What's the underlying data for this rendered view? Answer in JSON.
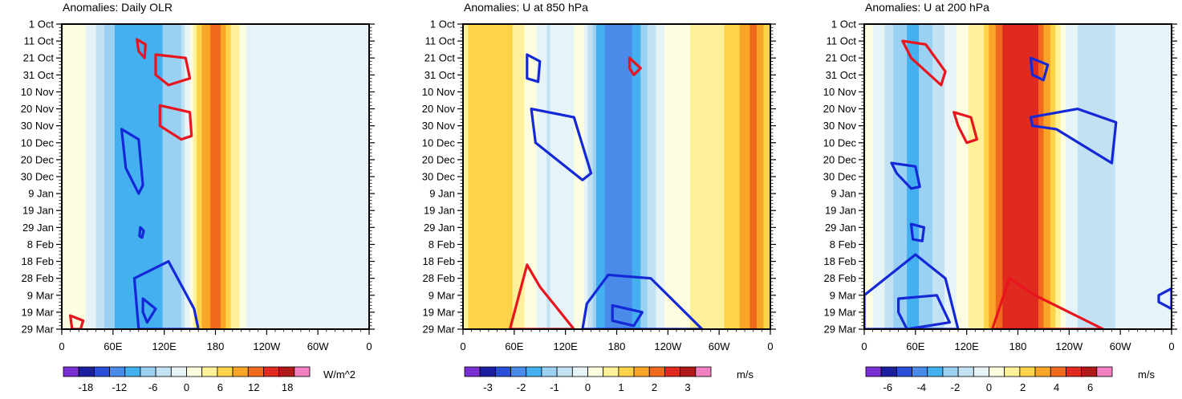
{
  "chart_data": [
    {
      "type": "heatmap",
      "title": "Anomalies: Daily OLR",
      "y_labels": [
        "1 Oct",
        "11 Oct",
        "21 Oct",
        "31 Oct",
        "10 Nov",
        "20 Nov",
        "30 Nov",
        "10 Dec",
        "20 Dec",
        "30 Dec",
        "9 Jan",
        "19 Jan",
        "29 Jan",
        "8 Feb",
        "18 Feb",
        "28 Feb",
        "9 Mar",
        "19 Mar",
        "29 Mar"
      ],
      "x_labels": [
        "0",
        "60E",
        "120E",
        "180",
        "120W",
        "60W",
        "0"
      ],
      "xlim": [
        0,
        360
      ],
      "ylim": [
        0,
        180
      ],
      "columns": {
        "lon": [
          0,
          20,
          40,
          60,
          80,
          100,
          120,
          140,
          160,
          180,
          200,
          220,
          240,
          260,
          280,
          300,
          320,
          340,
          360
        ],
        "anomaly": [
          1,
          2,
          -3,
          -8,
          -11,
          -10,
          -8,
          -6,
          7,
          13,
          5,
          -1,
          -2,
          -2,
          -1,
          -2,
          -2,
          -1,
          -1
        ]
      },
      "colorbar": {
        "labels": [
          "-18",
          "-12",
          "-6",
          "0",
          "6",
          "12",
          "18"
        ],
        "units": "W/m^2",
        "min": -22,
        "max": 22
      },
      "contours": [
        {
          "color": "red",
          "points": [
            [
              88,
              9
            ],
            [
              98,
              12
            ],
            [
              97,
              20
            ],
            [
              90,
              16
            ]
          ]
        },
        {
          "color": "red",
          "points": [
            [
              110,
              18
            ],
            [
              145,
              20
            ],
            [
              150,
              32
            ],
            [
              125,
              36
            ],
            [
              110,
              30
            ]
          ]
        },
        {
          "color": "red",
          "points": [
            [
              115,
              48
            ],
            [
              150,
              52
            ],
            [
              152,
              66
            ],
            [
              140,
              68
            ],
            [
              115,
              60
            ]
          ]
        },
        {
          "color": "blue",
          "points": [
            [
              70,
              62
            ],
            [
              90,
              68
            ],
            [
              95,
              95
            ],
            [
              90,
              100
            ],
            [
              75,
              85
            ]
          ]
        },
        {
          "color": "blue",
          "points": [
            [
              92,
              120
            ],
            [
              96,
              122
            ],
            [
              94,
              126
            ],
            [
              91,
              125
            ]
          ]
        },
        {
          "color": "blue",
          "points": [
            [
              85,
              150
            ],
            [
              125,
              140
            ],
            [
              155,
              168
            ],
            [
              160,
              180
            ],
            [
              90,
              180
            ]
          ]
        },
        {
          "color": "blue",
          "points": [
            [
              95,
              162
            ],
            [
              110,
              168
            ],
            [
              100,
              176
            ],
            [
              95,
              170
            ]
          ]
        },
        {
          "color": "red",
          "points": [
            [
              10,
              172
            ],
            [
              25,
              175
            ],
            [
              22,
              180
            ],
            [
              12,
              180
            ]
          ]
        }
      ]
    },
    {
      "type": "heatmap",
      "title": "Anomalies: U at 850 hPa",
      "y_labels": [
        "1 Oct",
        "11 Oct",
        "21 Oct",
        "31 Oct",
        "10 Nov",
        "20 Nov",
        "30 Nov",
        "10 Dec",
        "20 Dec",
        "30 Dec",
        "9 Jan",
        "19 Jan",
        "29 Jan",
        "8 Feb",
        "18 Feb",
        "28 Feb",
        "9 Mar",
        "19 Mar",
        "29 Mar"
      ],
      "x_labels": [
        "0",
        "60E",
        "120E",
        "180",
        "120W",
        "60W",
        "0"
      ],
      "xlim": [
        0,
        360
      ],
      "ylim": [
        0,
        180
      ],
      "columns": {
        "lon": [
          0,
          20,
          40,
          60,
          80,
          100,
          120,
          140,
          160,
          180,
          200,
          220,
          240,
          260,
          280,
          300,
          320,
          340,
          360
        ],
        "anomaly": [
          0.8,
          1.2,
          1.3,
          0.9,
          0.2,
          -0.5,
          -0.2,
          0.2,
          -1.7,
          -2.3,
          -1.8,
          -0.7,
          0.2,
          0.4,
          0.6,
          0.8,
          1.2,
          2.0,
          1.0
        ]
      },
      "colorbar": {
        "labels": [
          "-3",
          "-2",
          "-1",
          "0",
          "1",
          "2",
          "3"
        ],
        "units": "m/s",
        "min": -3.7,
        "max": 3.7
      },
      "contours": [
        {
          "color": "blue",
          "points": [
            [
              75,
              18
            ],
            [
              90,
              22
            ],
            [
              88,
              34
            ],
            [
              75,
              32
            ]
          ]
        },
        {
          "color": "red",
          "points": [
            [
              195,
              20
            ],
            [
              208,
              26
            ],
            [
              200,
              30
            ],
            [
              195,
              26
            ]
          ]
        },
        {
          "color": "blue",
          "points": [
            [
              80,
              50
            ],
            [
              130,
              55
            ],
            [
              150,
              88
            ],
            [
              140,
              92
            ],
            [
              85,
              70
            ]
          ]
        },
        {
          "color": "red",
          "points": [
            [
              55,
              180
            ],
            [
              75,
              142
            ],
            [
              90,
              155
            ],
            [
              130,
              180
            ]
          ]
        },
        {
          "color": "blue",
          "points": [
            [
              145,
              165
            ],
            [
              170,
              148
            ],
            [
              220,
              150
            ],
            [
              280,
              180
            ],
            [
              140,
              180
            ]
          ]
        },
        {
          "color": "blue",
          "points": [
            [
              175,
              166
            ],
            [
              210,
              170
            ],
            [
              200,
              178
            ],
            [
              175,
              175
            ]
          ]
        }
      ]
    },
    {
      "type": "heatmap",
      "title": "Anomalies: U at 200 hPa",
      "y_labels": [
        "1 Oct",
        "11 Oct",
        "21 Oct",
        "31 Oct",
        "10 Nov",
        "20 Nov",
        "30 Nov",
        "10 Dec",
        "20 Dec",
        "30 Dec",
        "9 Jan",
        "19 Jan",
        "29 Jan",
        "8 Feb",
        "18 Feb",
        "28 Feb",
        "9 Mar",
        "19 Mar",
        "29 Mar"
      ],
      "x_labels": [
        "0",
        "60E",
        "120E",
        "180",
        "120W",
        "60W",
        "0"
      ],
      "xlim": [
        0,
        360
      ],
      "ylim": [
        0,
        180
      ],
      "columns": {
        "lon": [
          0,
          20,
          40,
          60,
          80,
          100,
          120,
          140,
          160,
          180,
          200,
          220,
          240,
          260,
          280,
          300,
          320,
          340,
          360
        ],
        "anomaly": [
          0.5,
          -0.5,
          -2.5,
          -3,
          -1.8,
          -0.5,
          0.8,
          1.8,
          4.5,
          5.5,
          5.0,
          2.5,
          -0.5,
          -1.3,
          -1.8,
          -0.6,
          -0.5,
          -0.8,
          -0.5
        ]
      },
      "colorbar": {
        "labels": [
          "-6",
          "-4",
          "-2",
          "0",
          "2",
          "4",
          "6"
        ],
        "units": "m/s",
        "min": -7.3,
        "max": 7.3
      },
      "contours": [
        {
          "color": "red",
          "points": [
            [
              45,
              10
            ],
            [
              72,
              12
            ],
            [
              95,
              28
            ],
            [
              90,
              36
            ],
            [
              55,
              20
            ]
          ]
        },
        {
          "color": "blue",
          "points": [
            [
              195,
              20
            ],
            [
              215,
              24
            ],
            [
              210,
              33
            ],
            [
              197,
              30
            ]
          ]
        },
        {
          "color": "red",
          "points": [
            [
              105,
              52
            ],
            [
              125,
              55
            ],
            [
              132,
              68
            ],
            [
              120,
              70
            ],
            [
              110,
              60
            ]
          ]
        },
        {
          "color": "blue",
          "points": [
            [
              195,
              55
            ],
            [
              250,
              50
            ],
            [
              295,
              58
            ],
            [
              290,
              82
            ],
            [
              225,
              62
            ],
            [
              197,
              60
            ]
          ]
        },
        {
          "color": "blue",
          "points": [
            [
              32,
              82
            ],
            [
              60,
              84
            ],
            [
              65,
              96
            ],
            [
              55,
              97
            ],
            [
              38,
              88
            ]
          ]
        },
        {
          "color": "blue",
          "points": [
            [
              55,
              118
            ],
            [
              70,
              120
            ],
            [
              68,
              128
            ],
            [
              57,
              127
            ]
          ]
        },
        {
          "color": "blue",
          "points": [
            [
              0,
              160
            ],
            [
              60,
              136
            ],
            [
              95,
              150
            ],
            [
              110,
              180
            ],
            [
              0,
              180
            ]
          ]
        },
        {
          "color": "blue",
          "points": [
            [
              40,
              162
            ],
            [
              85,
              160
            ],
            [
              100,
              176
            ],
            [
              50,
              180
            ],
            [
              40,
              170
            ]
          ]
        },
        {
          "color": "red",
          "points": [
            [
              150,
              180
            ],
            [
              170,
              150
            ],
            [
              200,
              160
            ],
            [
              280,
              180
            ]
          ]
        },
        {
          "color": "blue",
          "points": [
            [
              345,
              160
            ],
            [
              360,
              156
            ],
            [
              360,
              168
            ],
            [
              345,
              164
            ]
          ]
        }
      ]
    }
  ]
}
